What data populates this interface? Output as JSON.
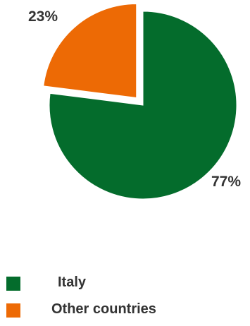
{
  "chart_data": {
    "type": "pie",
    "title": "",
    "categories": [
      "Italy",
      "Other countries"
    ],
    "values": [
      77,
      23
    ],
    "labels": [
      "77%",
      "23%"
    ],
    "colors": [
      "#046c2c",
      "#ed6a05"
    ],
    "exploded": "Other countries",
    "legend_position": "bottom-left"
  }
}
